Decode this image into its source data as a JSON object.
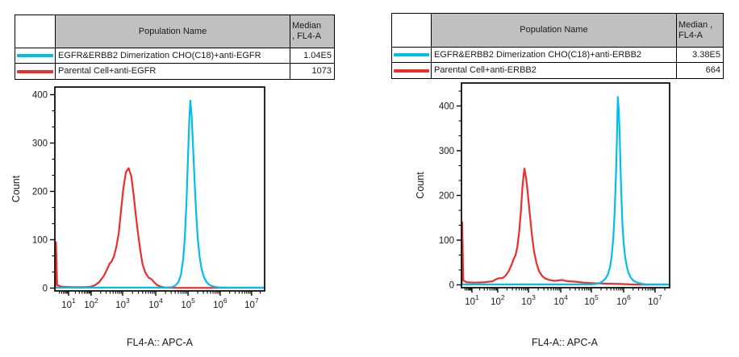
{
  "page": {
    "background": "#ffffff"
  },
  "colors": {
    "cyan_series": "#00BEEE",
    "red_series": "#EE2C2C",
    "table_header_bg": "#c0c0c0",
    "axis": "#000000"
  },
  "panels": [
    {
      "id": "left",
      "table": {
        "population_header": "Population Name",
        "median_header_lines": [
          "Median",
          ", FL4-A"
        ],
        "rows": [
          {
            "swatch_color": "#00BEEE",
            "name": "EGFR&ERBB2 Dimerization CHO(C18)+anti-EGFR",
            "median": "1.04E5"
          },
          {
            "swatch_color": "#EE2C2C",
            "name": "Parental Cell+anti-EGFR",
            "median": "1073"
          }
        ]
      }
    },
    {
      "id": "right",
      "table": {
        "population_header": "Population Name",
        "median_header_lines": [
          "Median ,",
          "FL4-A"
        ],
        "rows": [
          {
            "swatch_color": "#00BEEE",
            "name": "EGFR&ERBB2 Dimerization CHO(C18)+anti-ERBB2",
            "median": "3.38E5"
          },
          {
            "swatch_color": "#EE2C2C",
            "name": "Parental Cell+anti-ERBB2",
            "median": "664"
          }
        ]
      }
    }
  ],
  "chart_data": [
    {
      "type": "line",
      "subtype": "flow-cytometry-histogram",
      "title": "",
      "xlabel": "FL4-A:: APC-A",
      "ylabel": "Count",
      "x_scale": "logicle-log10",
      "x_tick_base": "10",
      "x_tick_exponents": [
        1,
        2,
        3,
        4,
        5,
        6,
        7
      ],
      "xlim_log10": [
        0.4,
        7.45
      ],
      "yticks": [
        0,
        100,
        200,
        300,
        400
      ],
      "ylim": [
        0,
        415
      ],
      "grid": false,
      "legend_position": "table-above",
      "series": [
        {
          "name": "EGFR&ERBB2 Dimerization CHO(C18)+anti-EGFR",
          "color": "#00BEEE",
          "median_fl4a": "1.04E5",
          "peak": {
            "log10_x": 5.07,
            "count": 388
          },
          "points_log10x_count": [
            [
              0.42,
              1
            ],
            [
              1.5,
              1
            ],
            [
              3.0,
              1
            ],
            [
              4.3,
              1
            ],
            [
              4.5,
              2
            ],
            [
              4.6,
              5
            ],
            [
              4.7,
              12
            ],
            [
              4.78,
              28
            ],
            [
              4.85,
              60
            ],
            [
              4.9,
              105
            ],
            [
              4.95,
              175
            ],
            [
              5.0,
              275
            ],
            [
              5.04,
              350
            ],
            [
              5.07,
              388
            ],
            [
              5.11,
              358
            ],
            [
              5.15,
              300
            ],
            [
              5.2,
              225
            ],
            [
              5.25,
              160
            ],
            [
              5.3,
              105
            ],
            [
              5.36,
              65
            ],
            [
              5.42,
              40
            ],
            [
              5.5,
              22
            ],
            [
              5.58,
              12
            ],
            [
              5.68,
              6
            ],
            [
              5.8,
              3
            ],
            [
              5.95,
              1.5
            ],
            [
              6.3,
              1
            ],
            [
              7.4,
              1
            ]
          ]
        },
        {
          "name": "Parental Cell+anti-EGFR",
          "color": "#EE2C2C",
          "median_fl4a": "1073",
          "peak": {
            "log10_x": 3.18,
            "count": 248
          },
          "points_log10x_count": [
            [
              0.42,
              0
            ],
            [
              0.45,
              95
            ],
            [
              0.5,
              6
            ],
            [
              0.7,
              3
            ],
            [
              1.2,
              2
            ],
            [
              1.7,
              2
            ],
            [
              2.0,
              3
            ],
            [
              2.12,
              6
            ],
            [
              2.25,
              12
            ],
            [
              2.4,
              25
            ],
            [
              2.5,
              38
            ],
            [
              2.58,
              50
            ],
            [
              2.65,
              55
            ],
            [
              2.72,
              65
            ],
            [
              2.8,
              85
            ],
            [
              2.88,
              115
            ],
            [
              2.95,
              160
            ],
            [
              3.02,
              205
            ],
            [
              3.1,
              240
            ],
            [
              3.18,
              248
            ],
            [
              3.26,
              232
            ],
            [
              3.33,
              195
            ],
            [
              3.4,
              150
            ],
            [
              3.47,
              110
            ],
            [
              3.54,
              75
            ],
            [
              3.6,
              50
            ],
            [
              3.68,
              33
            ],
            [
              3.78,
              22
            ],
            [
              3.88,
              18
            ],
            [
              3.95,
              12
            ],
            [
              4.05,
              6
            ],
            [
              4.15,
              3
            ],
            [
              4.3,
              1
            ],
            [
              4.6,
              0.5
            ],
            [
              7.4,
              0.5
            ]
          ]
        }
      ]
    },
    {
      "type": "line",
      "subtype": "flow-cytometry-histogram",
      "title": "",
      "xlabel": "FL4-A:: APC-A",
      "ylabel": "Count",
      "x_scale": "logicle-log10",
      "x_tick_base": "10",
      "x_tick_exponents": [
        1,
        2,
        3,
        4,
        5,
        6,
        7
      ],
      "xlim_log10": [
        0.4,
        7.45
      ],
      "yticks": [
        0,
        100,
        200,
        300,
        400
      ],
      "ylim": [
        0,
        451
      ],
      "grid": false,
      "legend_position": "table-above",
      "series": [
        {
          "name": "EGFR&ERBB2 Dimerization CHO(C18)+anti-ERBB2",
          "color": "#00BEEE",
          "median_fl4a": "3.38E5",
          "peak": {
            "log10_x": 5.82,
            "count": 420
          },
          "points_log10x_count": [
            [
              0.42,
              1
            ],
            [
              2.0,
              1
            ],
            [
              4.5,
              1
            ],
            [
              5.0,
              1
            ],
            [
              5.15,
              2
            ],
            [
              5.25,
              4
            ],
            [
              5.35,
              8
            ],
            [
              5.45,
              15
            ],
            [
              5.52,
              25
            ],
            [
              5.58,
              40
            ],
            [
              5.63,
              65
            ],
            [
              5.68,
              105
            ],
            [
              5.72,
              160
            ],
            [
              5.76,
              240
            ],
            [
              5.79,
              320
            ],
            [
              5.82,
              420
            ],
            [
              5.85,
              390
            ],
            [
              5.88,
              330
            ],
            [
              5.9,
              270
            ],
            [
              5.93,
              200
            ],
            [
              5.96,
              140
            ],
            [
              6.0,
              95
            ],
            [
              6.05,
              62
            ],
            [
              6.1,
              42
            ],
            [
              6.15,
              28
            ],
            [
              6.22,
              17
            ],
            [
              6.3,
              10
            ],
            [
              6.4,
              6
            ],
            [
              6.5,
              4
            ],
            [
              6.6,
              2
            ],
            [
              6.72,
              1.5
            ],
            [
              7.0,
              1
            ],
            [
              7.4,
              1
            ]
          ]
        },
        {
          "name": "Parental Cell+anti-ERBB2",
          "color": "#EE2C2C",
          "median_fl4a": "664",
          "peak": {
            "log10_x": 2.87,
            "count": 260
          },
          "points_log10x_count": [
            [
              0.42,
              0
            ],
            [
              0.44,
              140
            ],
            [
              0.5,
              10
            ],
            [
              0.7,
              6
            ],
            [
              1.1,
              5
            ],
            [
              1.5,
              6
            ],
            [
              1.8,
              8
            ],
            [
              1.95,
              13
            ],
            [
              2.05,
              15
            ],
            [
              2.15,
              15
            ],
            [
              2.25,
              20
            ],
            [
              2.35,
              30
            ],
            [
              2.45,
              45
            ],
            [
              2.52,
              58
            ],
            [
              2.58,
              66
            ],
            [
              2.64,
              85
            ],
            [
              2.7,
              120
            ],
            [
              2.76,
              170
            ],
            [
              2.8,
              215
            ],
            [
              2.84,
              245
            ],
            [
              2.87,
              260
            ],
            [
              2.92,
              240
            ],
            [
              2.97,
              210
            ],
            [
              3.03,
              165
            ],
            [
              3.1,
              115
            ],
            [
              3.17,
              75
            ],
            [
              3.25,
              48
            ],
            [
              3.33,
              30
            ],
            [
              3.42,
              20
            ],
            [
              3.52,
              14
            ],
            [
              3.65,
              11
            ],
            [
              3.8,
              9
            ],
            [
              3.95,
              10
            ],
            [
              4.05,
              11
            ],
            [
              4.15,
              9
            ],
            [
              4.3,
              8
            ],
            [
              4.5,
              7
            ],
            [
              4.75,
              5
            ],
            [
              5.0,
              4
            ],
            [
              5.3,
              3
            ],
            [
              5.6,
              2.5
            ],
            [
              5.9,
              2
            ],
            [
              6.2,
              1
            ],
            [
              6.5,
              0.5
            ],
            [
              7.4,
              0.5
            ]
          ]
        }
      ]
    }
  ]
}
